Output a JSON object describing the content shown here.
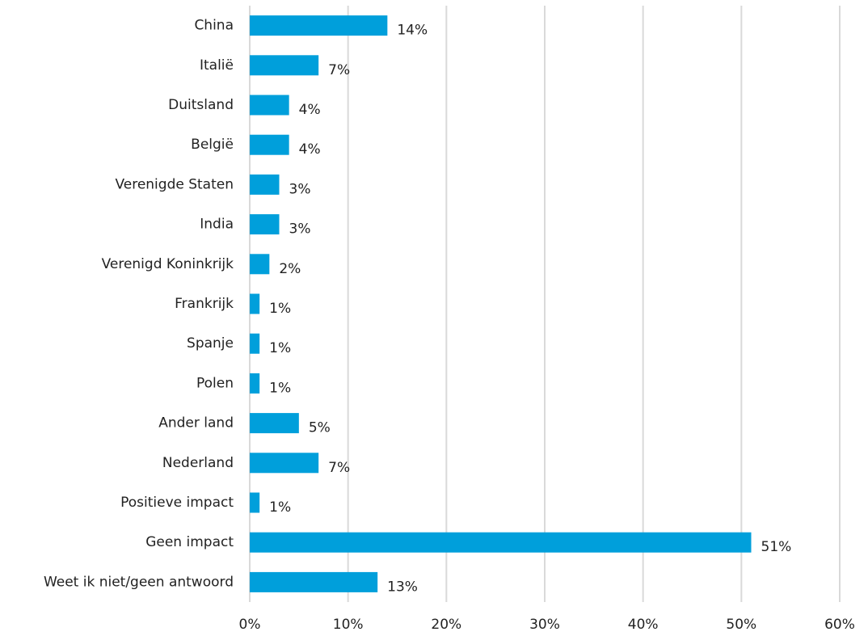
{
  "chart_data": {
    "type": "bar",
    "orientation": "horizontal",
    "categories": [
      "China",
      "Italië",
      "Duitsland",
      "België",
      "Verenigde Staten",
      "India",
      "Verenigd Koninkrijk",
      "Frankrijk",
      "Spanje",
      "Polen",
      "Ander land",
      "Nederland",
      "Positieve impact",
      "Geen impact",
      "Weet ik niet/geen antwoord"
    ],
    "values": [
      14,
      7,
      4,
      4,
      3,
      3,
      2,
      1,
      1,
      1,
      5,
      7,
      1,
      51,
      13
    ],
    "value_labels": [
      "14%",
      "7%",
      "4%",
      "4%",
      "3%",
      "3%",
      "2%",
      "1%",
      "1%",
      "1%",
      "5%",
      "7%",
      "1%",
      "51%",
      "13%"
    ],
    "color": "#009fdb",
    "xlim": [
      0,
      60
    ],
    "xticks": [
      {
        "value": 0,
        "label": "0%"
      },
      {
        "value": 10,
        "label": "10%"
      },
      {
        "value": 20,
        "label": "20%"
      },
      {
        "value": 30,
        "label": "30%"
      },
      {
        "value": 40,
        "label": "40%"
      },
      {
        "value": 50,
        "label": "50%"
      },
      {
        "value": 60,
        "label": "60%"
      }
    ],
    "grid": true
  }
}
